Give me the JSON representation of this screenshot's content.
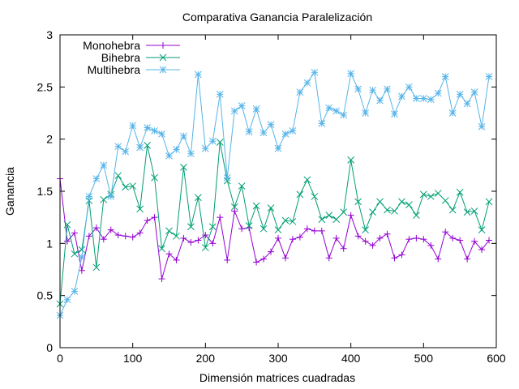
{
  "chart_data": {
    "type": "line",
    "title": "Comparativa Ganancia Paralelización",
    "xlabel": "Dimensión matrices cuadradas",
    "ylabel": "Ganancia",
    "xlim": [
      0,
      600
    ],
    "ylim": [
      0,
      3
    ],
    "x_ticks": [
      0,
      100,
      200,
      300,
      400,
      500,
      600
    ],
    "y_ticks": [
      0,
      0.5,
      1,
      1.5,
      2,
      2.5,
      3
    ],
    "grid": false,
    "legend_position": "top-left",
    "x": [
      0,
      10,
      20,
      30,
      40,
      50,
      60,
      70,
      80,
      90,
      100,
      110,
      120,
      130,
      140,
      150,
      160,
      170,
      180,
      190,
      200,
      210,
      220,
      230,
      240,
      250,
      260,
      270,
      280,
      290,
      300,
      310,
      320,
      330,
      340,
      350,
      360,
      370,
      380,
      390,
      400,
      410,
      420,
      430,
      440,
      450,
      460,
      470,
      480,
      490,
      500,
      510,
      520,
      530,
      540,
      550,
      560,
      570,
      580,
      590
    ],
    "series": [
      {
        "name": "Monohebra",
        "color": "#9400d3",
        "marker": "plus",
        "values": [
          1.62,
          1.02,
          1.1,
          0.74,
          1.07,
          1.15,
          1.04,
          1.13,
          1.08,
          1.07,
          1.06,
          1.1,
          1.22,
          1.25,
          0.66,
          0.9,
          0.84,
          1.05,
          1.01,
          1.03,
          1.08,
          1.0,
          1.25,
          0.84,
          1.31,
          1.14,
          1.15,
          0.82,
          0.85,
          0.92,
          1.05,
          0.86,
          1.04,
          1.06,
          1.14,
          1.12,
          1.12,
          0.86,
          1.05,
          0.95,
          1.27,
          1.07,
          1.02,
          0.98,
          1.05,
          1.09,
          0.86,
          0.89,
          1.04,
          1.05,
          1.04,
          0.98,
          0.85,
          1.11,
          1.05,
          1.03,
          0.85,
          1.02,
          0.94,
          1.03
        ]
      },
      {
        "name": "Bihebra",
        "color": "#009e73",
        "marker": "cross",
        "values": [
          0.42,
          1.18,
          0.9,
          0.94,
          1.41,
          0.77,
          1.42,
          1.47,
          1.65,
          1.54,
          1.55,
          1.33,
          1.94,
          1.63,
          0.95,
          1.12,
          1.07,
          1.73,
          1.16,
          1.44,
          0.96,
          1.16,
          1.97,
          1.6,
          1.35,
          1.55,
          1.17,
          1.36,
          1.14,
          1.34,
          1.13,
          1.22,
          1.21,
          1.47,
          1.61,
          1.45,
          1.23,
          1.27,
          1.23,
          1.3,
          1.8,
          1.4,
          1.13,
          1.3,
          1.4,
          1.32,
          1.31,
          1.4,
          1.37,
          1.27,
          1.47,
          1.45,
          1.48,
          1.41,
          1.32,
          1.49,
          1.3,
          1.31,
          1.13,
          1.4
        ]
      },
      {
        "name": "Multihebra",
        "color": "#56b4e9",
        "marker": "star",
        "values": [
          0.31,
          0.46,
          0.54,
          0.87,
          1.45,
          1.62,
          1.75,
          1.45,
          1.93,
          1.88,
          2.13,
          1.92,
          2.11,
          2.08,
          2.05,
          1.84,
          1.9,
          2.03,
          1.86,
          2.62,
          1.91,
          1.98,
          2.43,
          1.63,
          2.27,
          2.32,
          2.07,
          2.29,
          2.06,
          2.14,
          1.91,
          2.05,
          2.08,
          2.45,
          2.54,
          2.64,
          2.15,
          2.3,
          2.27,
          2.23,
          2.63,
          2.48,
          2.25,
          2.47,
          2.37,
          2.48,
          2.24,
          2.41,
          2.5,
          2.39,
          2.39,
          2.38,
          2.44,
          2.6,
          2.25,
          2.43,
          2.34,
          2.45,
          2.12,
          2.6
        ]
      }
    ]
  }
}
